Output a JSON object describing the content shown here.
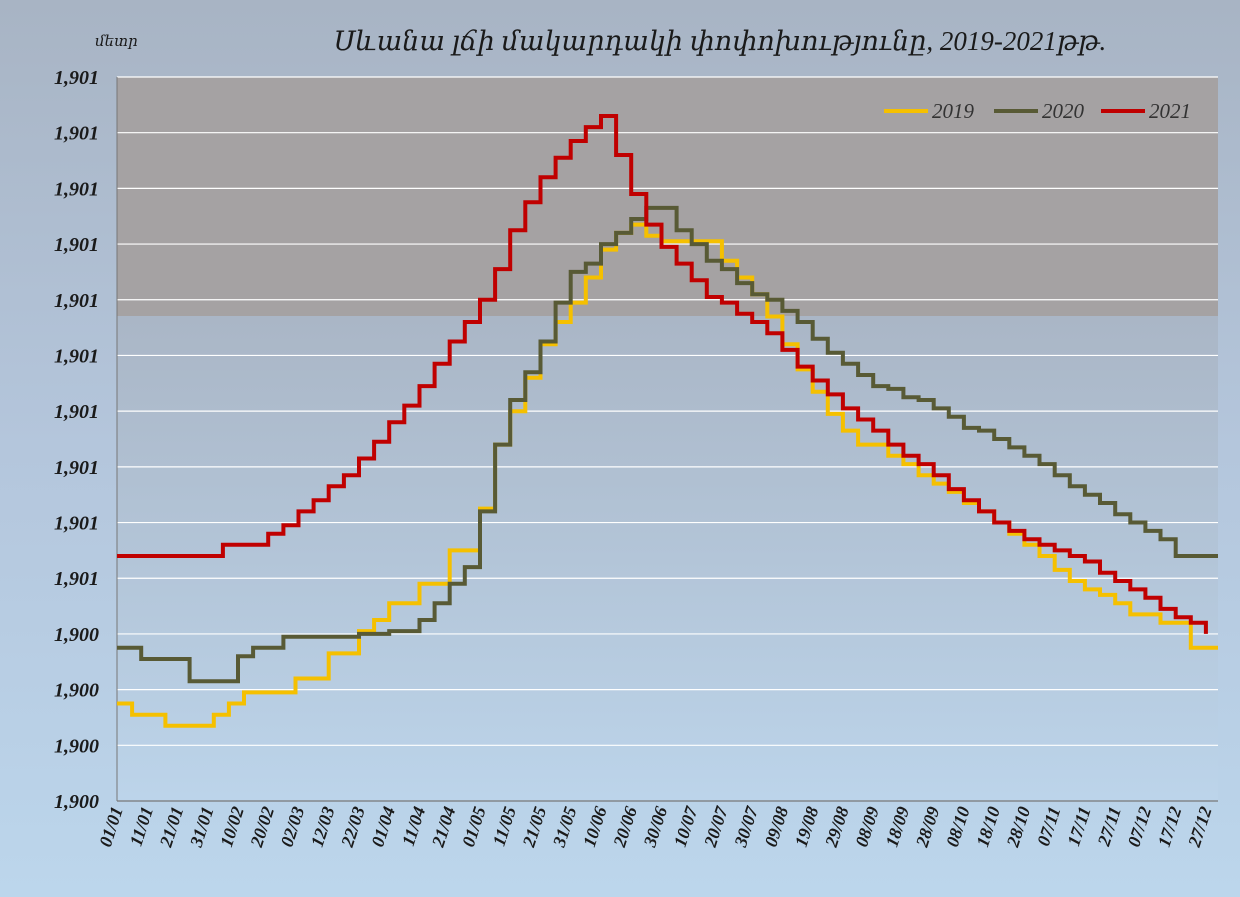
{
  "chart_data": {
    "type": "line",
    "title": "Սևանա լճի մակարդակի փոփոխությունը, 2019-2021թթ.",
    "ylabel": "մետր",
    "y_tick_labels": [
      "1,900",
      "1,900",
      "1,900",
      "1,900",
      "1,901",
      "1,901",
      "1,901",
      "1,901",
      "1,901",
      "1,901",
      "1,901",
      "1,901",
      "1,901",
      "1,901"
    ],
    "y_tick_values": [
      0,
      1,
      2,
      3,
      4,
      5,
      6,
      7,
      8,
      9,
      10,
      11,
      12,
      13
    ],
    "ylim": [
      0,
      13
    ],
    "x_day_range": [
      1,
      365
    ],
    "x_tick_labels": [
      "01/01",
      "11/01",
      "21/01",
      "31/01",
      "10/02",
      "20/02",
      "02/03",
      "12/03",
      "22/03",
      "01/04",
      "11/04",
      "21/04",
      "01/05",
      "11/05",
      "21/05",
      "31/05",
      "10/06",
      "20/06",
      "30/06",
      "10/07",
      "20/07",
      "30/07",
      "09/08",
      "19/08",
      "29/08",
      "08/09",
      "18/09",
      "28/09",
      "08/10",
      "18/10",
      "28/10",
      "07/11",
      "17/11",
      "27/11",
      "07/12",
      "17/12",
      "27/12"
    ],
    "x_tick_days": [
      1,
      11,
      21,
      31,
      41,
      51,
      61,
      71,
      81,
      91,
      101,
      111,
      121,
      131,
      141,
      151,
      161,
      171,
      181,
      191,
      201,
      211,
      221,
      231,
      241,
      251,
      261,
      271,
      281,
      291,
      301,
      311,
      321,
      331,
      341,
      351,
      361
    ],
    "grid": true,
    "legend_position": "top-right",
    "plot_colors": {
      "upper": "#a5a2a3",
      "lower": "#bcd4ea",
      "gridline": "#ffffff"
    },
    "series": [
      {
        "name": "2019",
        "color": "#f5c000",
        "x": [
          1,
          6,
          17,
          33,
          38,
          43,
          60,
          71,
          81,
          86,
          91,
          101,
          111,
          121,
          126,
          131,
          136,
          141,
          146,
          151,
          156,
          161,
          166,
          171,
          176,
          181,
          196,
          201,
          206,
          211,
          216,
          221,
          226,
          231,
          236,
          241,
          246,
          251,
          256,
          261,
          266,
          271,
          276,
          281,
          286,
          291,
          296,
          301,
          306,
          311,
          316,
          321,
          326,
          331,
          336,
          346,
          356,
          365
        ],
        "y": [
          1.75,
          1.55,
          1.35,
          1.55,
          1.75,
          1.95,
          2.2,
          2.65,
          3.05,
          3.25,
          3.55,
          3.9,
          4.5,
          5.25,
          6.4,
          7.0,
          7.6,
          8.2,
          8.6,
          8.95,
          9.4,
          9.9,
          10.2,
          10.35,
          10.15,
          10.05,
          10.05,
          9.7,
          9.4,
          9.1,
          8.7,
          8.2,
          7.75,
          7.35,
          6.95,
          6.65,
          6.4,
          6.4,
          6.2,
          6.05,
          5.85,
          5.7,
          5.55,
          5.35,
          5.2,
          5.0,
          4.8,
          4.6,
          4.4,
          4.15,
          3.95,
          3.8,
          3.7,
          3.55,
          3.35,
          3.2,
          2.75,
          2.75
        ]
      },
      {
        "name": "2020",
        "color": "#585a35",
        "x": [
          1,
          9,
          25,
          35,
          41,
          46,
          56,
          61,
          71,
          81,
          91,
          101,
          106,
          111,
          116,
          121,
          126,
          131,
          136,
          141,
          146,
          151,
          156,
          161,
          166,
          171,
          176,
          181,
          186,
          191,
          196,
          201,
          206,
          211,
          216,
          221,
          226,
          231,
          236,
          241,
          246,
          251,
          256,
          261,
          266,
          271,
          276,
          281,
          286,
          291,
          296,
          301,
          306,
          311,
          316,
          321,
          326,
          331,
          336,
          341,
          346,
          351,
          356,
          365
        ],
        "y": [
          2.75,
          2.55,
          2.15,
          2.15,
          2.6,
          2.75,
          2.95,
          2.95,
          2.95,
          3.0,
          3.05,
          3.25,
          3.55,
          3.9,
          4.2,
          5.2,
          6.4,
          7.2,
          7.7,
          8.25,
          8.95,
          9.5,
          9.65,
          10.0,
          10.2,
          10.45,
          10.65,
          10.65,
          10.25,
          10.0,
          9.7,
          9.55,
          9.3,
          9.1,
          9.0,
          8.8,
          8.6,
          8.3,
          8.05,
          7.85,
          7.65,
          7.45,
          7.4,
          7.25,
          7.2,
          7.05,
          6.9,
          6.7,
          6.65,
          6.5,
          6.35,
          6.2,
          6.05,
          5.85,
          5.65,
          5.5,
          5.35,
          5.15,
          5.0,
          4.85,
          4.7,
          4.4,
          4.4,
          4.4
        ]
      },
      {
        "name": "2021",
        "color": "#c00000",
        "x": [
          1,
          31,
          36,
          51,
          56,
          61,
          66,
          71,
          76,
          81,
          86,
          91,
          96,
          101,
          106,
          111,
          116,
          121,
          126,
          131,
          136,
          141,
          146,
          151,
          156,
          161,
          166,
          171,
          176,
          181,
          186,
          191,
          196,
          201,
          206,
          211,
          216,
          221,
          226,
          231,
          236,
          241,
          246,
          251,
          256,
          261,
          266,
          271,
          276,
          281,
          286,
          291,
          296,
          301,
          306,
          311,
          316,
          321,
          326,
          331,
          336,
          341,
          346,
          351,
          356,
          361
        ],
        "y": [
          4.4,
          4.4,
          4.6,
          4.8,
          4.95,
          5.2,
          5.4,
          5.65,
          5.85,
          6.15,
          6.45,
          6.8,
          7.1,
          7.45,
          7.85,
          8.25,
          8.6,
          9.0,
          9.55,
          10.25,
          10.75,
          11.2,
          11.55,
          11.85,
          12.1,
          12.3,
          11.6,
          10.9,
          10.35,
          9.95,
          9.65,
          9.35,
          9.05,
          8.95,
          8.75,
          8.6,
          8.4,
          8.1,
          7.8,
          7.55,
          7.3,
          7.05,
          6.85,
          6.65,
          6.4,
          6.2,
          6.05,
          5.85,
          5.6,
          5.4,
          5.2,
          5.0,
          4.85,
          4.7,
          4.6,
          4.5,
          4.4,
          4.3,
          4.1,
          3.95,
          3.8,
          3.65,
          3.45,
          3.3,
          3.2,
          3.0
        ]
      }
    ]
  }
}
